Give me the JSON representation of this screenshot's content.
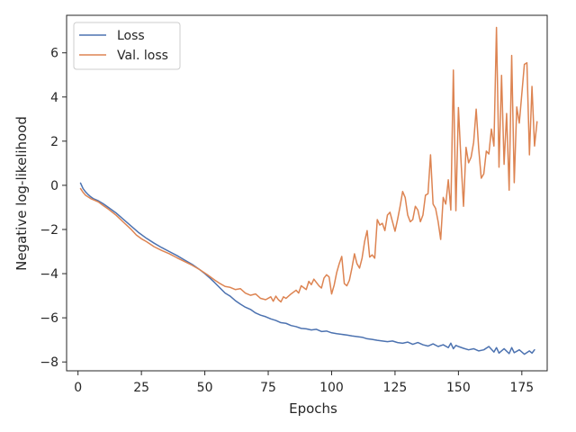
{
  "chart_data": {
    "type": "line",
    "title": "",
    "xlabel": "Epochs",
    "ylabel": "Negative log-likelihood",
    "xlim": [
      -4.5,
      185
    ],
    "ylim": [
      -8.4,
      7.7
    ],
    "xticks": [
      0,
      25,
      50,
      75,
      100,
      125,
      150,
      175
    ],
    "yticks": [
      -8,
      -6,
      -4,
      -2,
      0,
      2,
      4,
      6
    ],
    "grid": false,
    "legend": "top-left",
    "colors": {
      "Loss": "#4c72b0",
      "Val. loss": "#dd8452"
    },
    "series": [
      {
        "name": "Loss",
        "points": [
          [
            1,
            0.1
          ],
          [
            2,
            -0.15
          ],
          [
            3,
            -0.3
          ],
          [
            4,
            -0.42
          ],
          [
            5,
            -0.52
          ],
          [
            6,
            -0.6
          ],
          [
            8,
            -0.7
          ],
          [
            10,
            -0.84
          ],
          [
            12,
            -1.0
          ],
          [
            15,
            -1.25
          ],
          [
            18,
            -1.55
          ],
          [
            21,
            -1.85
          ],
          [
            24,
            -2.15
          ],
          [
            27,
            -2.4
          ],
          [
            30,
            -2.62
          ],
          [
            33,
            -2.82
          ],
          [
            36,
            -3.0
          ],
          [
            39,
            -3.18
          ],
          [
            42,
            -3.38
          ],
          [
            45,
            -3.58
          ],
          [
            48,
            -3.82
          ],
          [
            50,
            -4.0
          ],
          [
            52,
            -4.2
          ],
          [
            54,
            -4.42
          ],
          [
            56,
            -4.65
          ],
          [
            58,
            -4.88
          ],
          [
            60,
            -5.02
          ],
          [
            62,
            -5.22
          ],
          [
            64,
            -5.38
          ],
          [
            66,
            -5.52
          ],
          [
            68,
            -5.62
          ],
          [
            70,
            -5.78
          ],
          [
            72,
            -5.88
          ],
          [
            74,
            -5.95
          ],
          [
            76,
            -6.05
          ],
          [
            78,
            -6.12
          ],
          [
            80,
            -6.22
          ],
          [
            82,
            -6.25
          ],
          [
            84,
            -6.35
          ],
          [
            86,
            -6.4
          ],
          [
            88,
            -6.48
          ],
          [
            90,
            -6.5
          ],
          [
            92,
            -6.55
          ],
          [
            94,
            -6.52
          ],
          [
            96,
            -6.62
          ],
          [
            98,
            -6.6
          ],
          [
            100,
            -6.68
          ],
          [
            102,
            -6.72
          ],
          [
            104,
            -6.75
          ],
          [
            106,
            -6.78
          ],
          [
            108,
            -6.82
          ],
          [
            110,
            -6.85
          ],
          [
            112,
            -6.88
          ],
          [
            114,
            -6.95
          ],
          [
            116,
            -6.98
          ],
          [
            118,
            -7.02
          ],
          [
            120,
            -7.05
          ],
          [
            122,
            -7.08
          ],
          [
            124,
            -7.05
          ],
          [
            126,
            -7.12
          ],
          [
            128,
            -7.15
          ],
          [
            130,
            -7.1
          ],
          [
            132,
            -7.2
          ],
          [
            134,
            -7.12
          ],
          [
            136,
            -7.22
          ],
          [
            138,
            -7.28
          ],
          [
            140,
            -7.18
          ],
          [
            142,
            -7.3
          ],
          [
            144,
            -7.22
          ],
          [
            146,
            -7.35
          ],
          [
            147,
            -7.15
          ],
          [
            148,
            -7.4
          ],
          [
            149,
            -7.25
          ],
          [
            150,
            -7.3
          ],
          [
            152,
            -7.38
          ],
          [
            154,
            -7.45
          ],
          [
            156,
            -7.4
          ],
          [
            158,
            -7.5
          ],
          [
            160,
            -7.45
          ],
          [
            162,
            -7.3
          ],
          [
            164,
            -7.55
          ],
          [
            165,
            -7.35
          ],
          [
            166,
            -7.6
          ],
          [
            168,
            -7.4
          ],
          [
            170,
            -7.62
          ],
          [
            171,
            -7.35
          ],
          [
            172,
            -7.58
          ],
          [
            174,
            -7.45
          ],
          [
            176,
            -7.65
          ],
          [
            178,
            -7.5
          ],
          [
            179,
            -7.6
          ],
          [
            180,
            -7.45
          ]
        ]
      },
      {
        "name": "Val. loss",
        "points": [
          [
            1,
            -0.15
          ],
          [
            2,
            -0.32
          ],
          [
            3,
            -0.45
          ],
          [
            5,
            -0.6
          ],
          [
            8,
            -0.75
          ],
          [
            10,
            -0.92
          ],
          [
            12,
            -1.08
          ],
          [
            15,
            -1.35
          ],
          [
            18,
            -1.68
          ],
          [
            21,
            -2.0
          ],
          [
            23,
            -2.25
          ],
          [
            25,
            -2.42
          ],
          [
            27,
            -2.55
          ],
          [
            30,
            -2.78
          ],
          [
            33,
            -2.95
          ],
          [
            36,
            -3.1
          ],
          [
            39,
            -3.28
          ],
          [
            42,
            -3.45
          ],
          [
            45,
            -3.62
          ],
          [
            48,
            -3.82
          ],
          [
            51,
            -4.05
          ],
          [
            54,
            -4.3
          ],
          [
            56,
            -4.45
          ],
          [
            58,
            -4.58
          ],
          [
            60,
            -4.62
          ],
          [
            62,
            -4.72
          ],
          [
            64,
            -4.68
          ],
          [
            66,
            -4.88
          ],
          [
            68,
            -4.98
          ],
          [
            70,
            -4.92
          ],
          [
            72,
            -5.12
          ],
          [
            74,
            -5.18
          ],
          [
            76,
            -5.05
          ],
          [
            77,
            -5.25
          ],
          [
            78,
            -5.02
          ],
          [
            79,
            -5.18
          ],
          [
            80,
            -5.28
          ],
          [
            81,
            -5.05
          ],
          [
            82,
            -5.12
          ],
          [
            84,
            -4.92
          ],
          [
            86,
            -4.75
          ],
          [
            87,
            -4.88
          ],
          [
            88,
            -4.55
          ],
          [
            90,
            -4.72
          ],
          [
            91,
            -4.35
          ],
          [
            92,
            -4.5
          ],
          [
            93,
            -4.25
          ],
          [
            95,
            -4.55
          ],
          [
            96,
            -4.65
          ],
          [
            97,
            -4.2
          ],
          [
            98,
            -4.05
          ],
          [
            99,
            -4.15
          ],
          [
            100,
            -4.92
          ],
          [
            101,
            -4.52
          ],
          [
            102,
            -3.95
          ],
          [
            103,
            -3.55
          ],
          [
            104,
            -3.22
          ],
          [
            105,
            -4.45
          ],
          [
            106,
            -4.55
          ],
          [
            107,
            -4.3
          ],
          [
            108,
            -3.75
          ],
          [
            109,
            -3.1
          ],
          [
            110,
            -3.55
          ],
          [
            111,
            -3.75
          ],
          [
            112,
            -3.3
          ],
          [
            113,
            -2.55
          ],
          [
            114,
            -2.05
          ],
          [
            115,
            -3.25
          ],
          [
            116,
            -3.15
          ],
          [
            117,
            -3.3
          ],
          [
            118,
            -1.55
          ],
          [
            119,
            -1.8
          ],
          [
            120,
            -1.72
          ],
          [
            121,
            -2.05
          ],
          [
            122,
            -1.35
          ],
          [
            123,
            -1.22
          ],
          [
            124,
            -1.65
          ],
          [
            125,
            -2.08
          ],
          [
            126,
            -1.55
          ],
          [
            127,
            -0.95
          ],
          [
            128,
            -0.28
          ],
          [
            129,
            -0.55
          ],
          [
            130,
            -1.35
          ],
          [
            131,
            -1.65
          ],
          [
            132,
            -1.55
          ],
          [
            133,
            -0.95
          ],
          [
            134,
            -1.12
          ],
          [
            135,
            -1.65
          ],
          [
            136,
            -1.35
          ],
          [
            137,
            -0.45
          ],
          [
            138,
            -0.38
          ],
          [
            139,
            1.38
          ],
          [
            140,
            -0.85
          ],
          [
            141,
            -1.05
          ],
          [
            142,
            -1.65
          ],
          [
            143,
            -2.45
          ],
          [
            144,
            -0.55
          ],
          [
            145,
            -0.85
          ],
          [
            146,
            0.25
          ],
          [
            147,
            -1.12
          ],
          [
            148,
            5.22
          ],
          [
            149,
            -1.15
          ],
          [
            150,
            3.52
          ],
          [
            151,
            1.15
          ],
          [
            152,
            -0.95
          ],
          [
            153,
            1.72
          ],
          [
            154,
            1.02
          ],
          [
            155,
            1.28
          ],
          [
            156,
            1.95
          ],
          [
            157,
            3.45
          ],
          [
            158,
            1.65
          ],
          [
            159,
            0.32
          ],
          [
            160,
            0.52
          ],
          [
            161,
            1.55
          ],
          [
            162,
            1.42
          ],
          [
            163,
            2.55
          ],
          [
            164,
            1.78
          ],
          [
            165,
            7.15
          ],
          [
            166,
            0.82
          ],
          [
            167,
            4.98
          ],
          [
            168,
            0.95
          ],
          [
            169,
            3.25
          ],
          [
            170,
            -0.22
          ],
          [
            171,
            5.88
          ],
          [
            172,
            0.12
          ],
          [
            173,
            3.55
          ],
          [
            174,
            2.82
          ],
          [
            175,
            4.15
          ],
          [
            176,
            5.48
          ],
          [
            177,
            5.55
          ],
          [
            178,
            1.38
          ],
          [
            179,
            4.48
          ],
          [
            180,
            1.78
          ],
          [
            181,
            2.88
          ]
        ]
      }
    ]
  }
}
